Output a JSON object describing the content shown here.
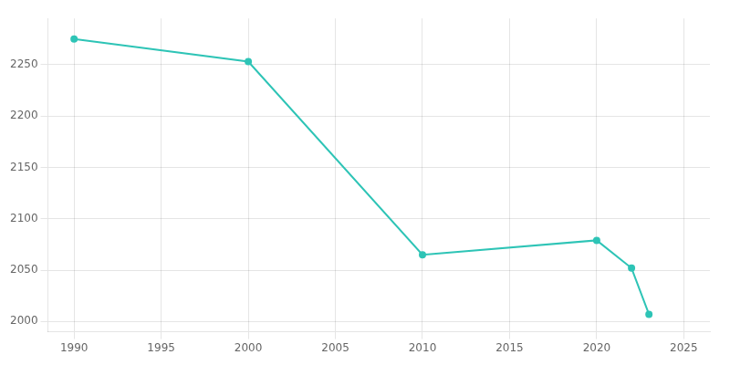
{
  "chart_data": {
    "type": "line",
    "x": [
      1990,
      2000,
      2010,
      2020,
      2022,
      2023
    ],
    "values": [
      2275,
      2253,
      2065,
      2079,
      2052,
      2007
    ],
    "color": "#2EC4B6",
    "marker": "circle",
    "xlim": [
      1988.5,
      2026.5
    ],
    "ylim": [
      1990,
      2295
    ],
    "xticks": [
      1990,
      1995,
      2000,
      2005,
      2010,
      2015,
      2020,
      2025
    ],
    "yticks": [
      2000,
      2050,
      2100,
      2150,
      2200,
      2250
    ],
    "grid": true
  }
}
